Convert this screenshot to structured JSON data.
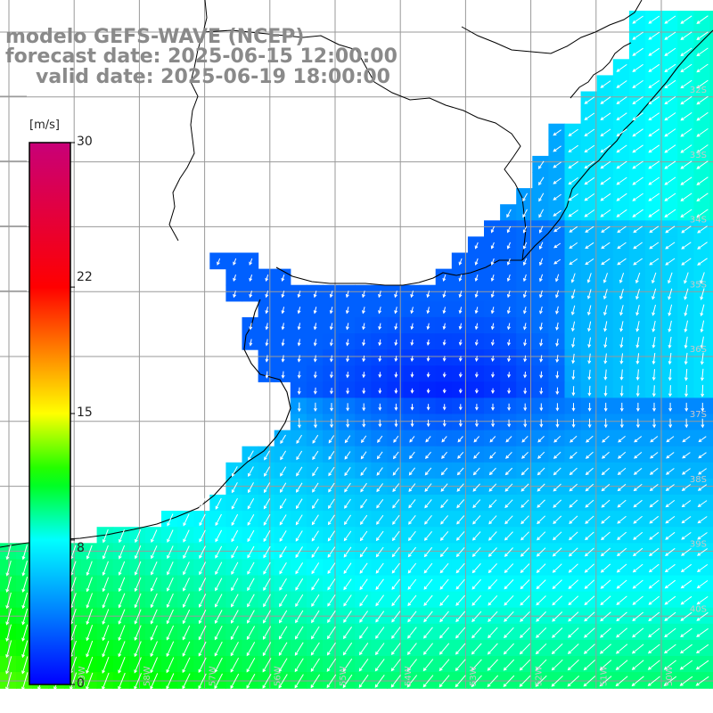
{
  "title": {
    "line1": "modelo GEFS-WAVE (NCEP)",
    "line2": "forecast date: 2025-06-15 12:00:00",
    "line3": "valid date: 2025-06-19 18:00:00"
  },
  "colorbar": {
    "unit": "[m/s]",
    "min": 0,
    "max": 30,
    "ticks": [
      "30",
      "22",
      "15",
      "8",
      "0"
    ],
    "tick_values": [
      30,
      22,
      15,
      8,
      0
    ]
  },
  "lat_labels": [
    "32S",
    "33S",
    "34S",
    "35S",
    "36S",
    "37S",
    "38S",
    "39S",
    "40S"
  ],
  "lon_labels": [
    "59W",
    "58W",
    "57W",
    "56W",
    "55W",
    "54W",
    "53W",
    "52W",
    "51W",
    "50W"
  ],
  "colors": {
    "land": "#ffffff",
    "grid": "#9a9a9a",
    "coast": "#000000",
    "arrow": "#ffffff",
    "title": "#8a8a8a"
  },
  "map_data": {
    "variable": "wind speed",
    "units": "m/s",
    "wind_direction_summary": "winds from the north-east blowing toward the south-west along the coast; weak winds over the Rio de la Plata and central calm zone; stronger winds (8-12 m/s) in the south-west"
  }
}
